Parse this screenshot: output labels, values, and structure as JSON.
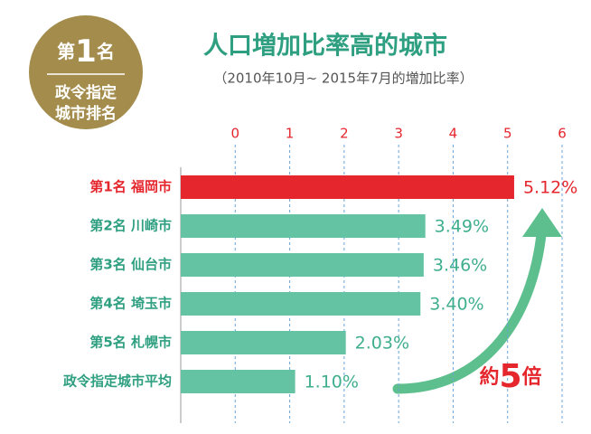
{
  "badge": {
    "rank_parts": [
      "第",
      "1",
      "名"
    ],
    "label_lines": [
      "政令指定",
      "城市排名"
    ]
  },
  "chart_data": {
    "type": "bar",
    "orientation": "horizontal",
    "title": "人口増加比率高的城市",
    "subtitle": "（2010年10月~ 2015年7月的増加比率）",
    "categories": [
      "第1名 福岡市",
      "第2名 川崎市",
      "第3名 仙台市",
      "第4名 埼玉市",
      "第5名 札幌市",
      "政令指定城市平均"
    ],
    "values": [
      5.12,
      3.49,
      3.46,
      3.4,
      2.03,
      1.1
    ],
    "value_labels": [
      "5.12%",
      "3.49%",
      "3.46%",
      "3.40%",
      "2.03%",
      "1.10%"
    ],
    "colors": [
      "#e5262d",
      "#63c3a2",
      "#63c3a2",
      "#63c3a2",
      "#63c3a2",
      "#63c3a2"
    ],
    "label_colors": [
      "#e5262d",
      "#2e9f80",
      "#2e9f80",
      "#2e9f80",
      "#2e9f80",
      "#2e9f80"
    ],
    "xlim": [
      -1,
      6
    ],
    "xticks": [
      0,
      1,
      2,
      3,
      4,
      5,
      6
    ],
    "grid": true,
    "annotation": [
      "約",
      "5",
      "倍"
    ]
  }
}
